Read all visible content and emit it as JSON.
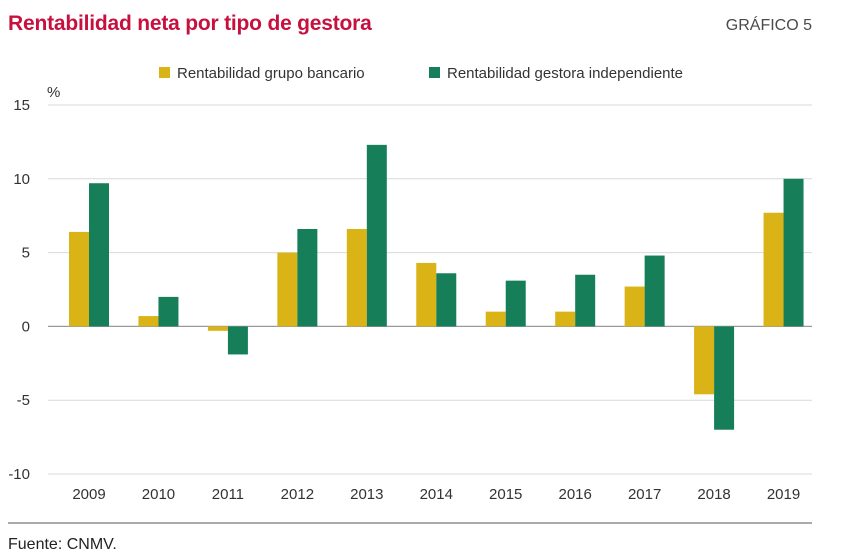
{
  "header": {
    "title": "Rentabilidad neta por tipo de gestora",
    "figure_label": "GRÁFICO 5"
  },
  "footer": {
    "source": "Fuente: CNMV."
  },
  "colors": {
    "title": "#c8103e",
    "series_bank": "#dab416",
    "series_independent": "#167f59",
    "grid": "#d9d9d9",
    "axis_zero": "#9a9a9a",
    "bottom_rule": "#555555"
  },
  "chart_data": {
    "type": "bar",
    "title": "Rentabilidad neta por tipo de gestora",
    "ylabel": "%",
    "ylim": [
      -10,
      15
    ],
    "yticks": [
      15,
      10,
      5,
      0,
      -5,
      -10
    ],
    "ytick_labels": [
      "15",
      "10",
      "5",
      "0",
      "-5",
      "-10"
    ],
    "grid": true,
    "legend_position": "top-center",
    "categories": [
      "2009",
      "2010",
      "2011",
      "2012",
      "2013",
      "2014",
      "2015",
      "2016",
      "2017",
      "2018",
      "2019"
    ],
    "series": [
      {
        "name": "Rentabilidad grupo bancario",
        "color": "#dab416",
        "values": [
          6.4,
          0.7,
          -0.3,
          5.0,
          6.6,
          4.3,
          1.0,
          1.0,
          2.7,
          -4.6,
          7.7
        ]
      },
      {
        "name": "Rentabilidad gestora independiente",
        "color": "#167f59",
        "values": [
          9.7,
          2.0,
          -1.9,
          6.6,
          12.3,
          3.6,
          3.1,
          3.5,
          4.8,
          -7.0,
          10.0
        ]
      }
    ]
  }
}
